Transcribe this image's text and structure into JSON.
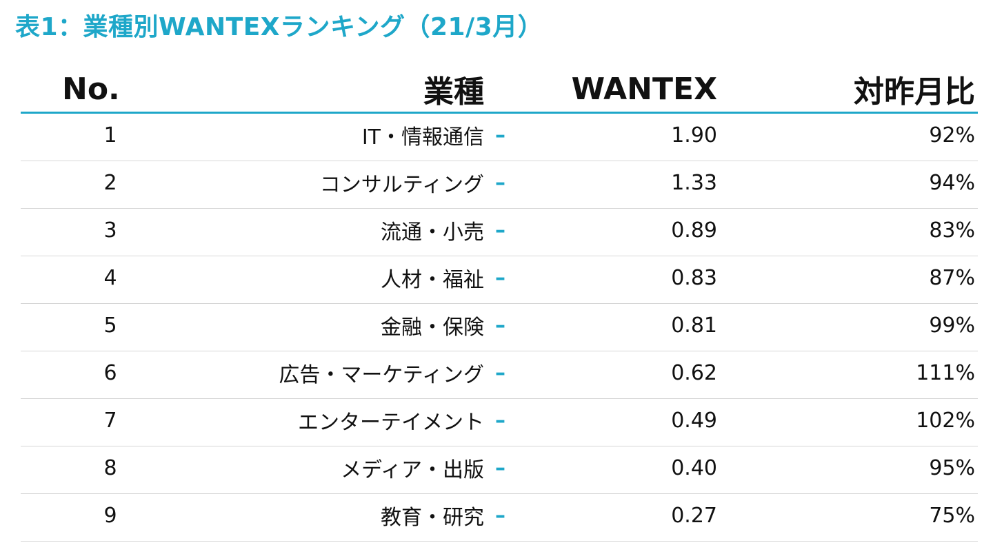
{
  "title": "表1：業種別WANTEXランキング（21/3月）",
  "header": {
    "no": "No.",
    "industry": "業種",
    "wantex": "WANTEX",
    "mom": "対昨月比"
  },
  "marker": "–",
  "rows": [
    {
      "no": "1",
      "industry": "IT・情報通信",
      "wantex": "1.90",
      "mom": "92%"
    },
    {
      "no": "2",
      "industry": "コンサルティング",
      "wantex": "1.33",
      "mom": "94%"
    },
    {
      "no": "3",
      "industry": "流通・小売",
      "wantex": "0.89",
      "mom": "83%"
    },
    {
      "no": "4",
      "industry": "人材・福祉",
      "wantex": "0.83",
      "mom": "87%"
    },
    {
      "no": "5",
      "industry": "金融・保険",
      "wantex": "0.81",
      "mom": "99%"
    },
    {
      "no": "6",
      "industry": "広告・マーケティング",
      "wantex": "0.62",
      "mom": "111%"
    },
    {
      "no": "7",
      "industry": "エンターテイメント",
      "wantex": "0.49",
      "mom": "102%"
    },
    {
      "no": "8",
      "industry": "メディア・出版",
      "wantex": "0.40",
      "mom": "95%"
    },
    {
      "no": "9",
      "industry": "教育・研究",
      "wantex": "0.27",
      "mom": "75%"
    }
  ],
  "colors": {
    "accent": "#1ea7c9",
    "rule": "#d6d6d6"
  }
}
